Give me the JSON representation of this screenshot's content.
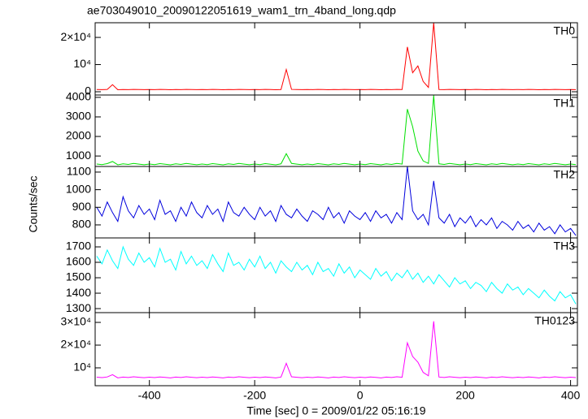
{
  "chart_data": [
    {
      "type": "line",
      "title": "ae703049010_20090122051619_wam1_trn_4band_long.qdp",
      "label": "TH0",
      "color": "#ff0000",
      "xlim": [
        -503,
        413
      ],
      "ylim": [
        -1200,
        25400
      ],
      "yticks": [
        0,
        {
          "value": 10000,
          "label": "10⁴"
        },
        {
          "value": 20000,
          "label": "2×10⁴"
        }
      ],
      "x": [
        -500,
        -490,
        -480,
        -470,
        -460,
        -450,
        -440,
        -430,
        -420,
        -410,
        -400,
        -390,
        -380,
        -370,
        -360,
        -350,
        -340,
        -330,
        -320,
        -310,
        -300,
        -290,
        -280,
        -270,
        -260,
        -250,
        -240,
        -230,
        -220,
        -210,
        -200,
        -190,
        -180,
        -170,
        -160,
        -150,
        -140,
        -130,
        -120,
        -110,
        -100,
        -90,
        -80,
        -70,
        -60,
        -50,
        -40,
        -30,
        -20,
        -10,
        0,
        10,
        20,
        30,
        40,
        50,
        60,
        70,
        80,
        90,
        100,
        110,
        120,
        130,
        140,
        150,
        160,
        170,
        180,
        190,
        200,
        210,
        220,
        230,
        240,
        250,
        260,
        270,
        280,
        290,
        300,
        310,
        320,
        330,
        340,
        350,
        360,
        370,
        380,
        390,
        400,
        410
      ],
      "values": [
        820,
        780,
        850,
        2600,
        760,
        830,
        790,
        870,
        810,
        770,
        820,
        780,
        850,
        800,
        760,
        830,
        790,
        870,
        810,
        770,
        820,
        780,
        850,
        800,
        760,
        830,
        790,
        870,
        810,
        770,
        820,
        780,
        850,
        800,
        760,
        830,
        8200,
        870,
        810,
        770,
        820,
        780,
        850,
        800,
        760,
        830,
        790,
        870,
        810,
        770,
        820,
        780,
        850,
        800,
        760,
        830,
        790,
        870,
        810,
        16500,
        7000,
        9500,
        3800,
        1600,
        25400,
        830,
        790,
        870,
        810,
        770,
        820,
        780,
        850,
        800,
        760,
        830,
        790,
        870,
        810,
        770,
        820,
        780,
        850,
        800,
        760,
        830,
        790,
        870,
        810,
        770,
        820,
        780
      ]
    },
    {
      "type": "line",
      "label": "TH1",
      "color": "#00e000",
      "xlim": [
        -503,
        413
      ],
      "ylim": [
        465,
        4120
      ],
      "yticks": [
        1000,
        2000,
        3000,
        4000
      ],
      "x": [
        -500,
        -490,
        -480,
        -470,
        -460,
        -450,
        -440,
        -430,
        -420,
        -410,
        -400,
        -390,
        -380,
        -370,
        -360,
        -350,
        -340,
        -330,
        -320,
        -310,
        -300,
        -290,
        -280,
        -270,
        -260,
        -250,
        -240,
        -230,
        -220,
        -210,
        -200,
        -190,
        -180,
        -170,
        -160,
        -150,
        -140,
        -130,
        -120,
        -110,
        -100,
        -90,
        -80,
        -70,
        -60,
        -50,
        -40,
        -30,
        -20,
        -10,
        0,
        10,
        20,
        30,
        40,
        50,
        60,
        70,
        80,
        90,
        100,
        110,
        120,
        130,
        140,
        150,
        160,
        170,
        180,
        190,
        200,
        210,
        220,
        230,
        240,
        250,
        260,
        270,
        280,
        290,
        300,
        310,
        320,
        330,
        340,
        350,
        360,
        370,
        380,
        390,
        400,
        410
      ],
      "values": [
        590,
        560,
        610,
        720,
        550,
        600,
        570,
        620,
        585,
        555,
        590,
        560,
        610,
        580,
        550,
        600,
        570,
        620,
        585,
        555,
        590,
        560,
        610,
        580,
        550,
        600,
        570,
        620,
        585,
        555,
        590,
        560,
        610,
        580,
        550,
        600,
        1120,
        620,
        585,
        555,
        590,
        560,
        610,
        580,
        550,
        600,
        570,
        620,
        585,
        555,
        590,
        560,
        610,
        580,
        550,
        600,
        570,
        620,
        585,
        3400,
        2500,
        1250,
        750,
        620,
        4100,
        600,
        570,
        620,
        585,
        555,
        590,
        560,
        610,
        580,
        550,
        600,
        570,
        620,
        585,
        555,
        590,
        560,
        610,
        580,
        550,
        600,
        570,
        620,
        585,
        555,
        590,
        560
      ]
    },
    {
      "type": "line",
      "label": "TH2",
      "ylabel": "Counts/sec",
      "color": "#0000dd",
      "xlim": [
        -503,
        413
      ],
      "ylim": [
        726,
        1132
      ],
      "yticks": [
        800,
        900,
        1000,
        1100
      ],
      "x": [
        -500,
        -490,
        -480,
        -470,
        -460,
        -450,
        -440,
        -430,
        -420,
        -410,
        -400,
        -390,
        -380,
        -370,
        -360,
        -350,
        -340,
        -330,
        -320,
        -310,
        -300,
        -290,
        -280,
        -270,
        -260,
        -250,
        -240,
        -230,
        -220,
        -210,
        -200,
        -190,
        -180,
        -170,
        -160,
        -150,
        -140,
        -130,
        -120,
        -110,
        -100,
        -90,
        -80,
        -70,
        -60,
        -50,
        -40,
        -30,
        -20,
        -10,
        0,
        10,
        20,
        30,
        40,
        50,
        60,
        70,
        80,
        90,
        100,
        110,
        120,
        130,
        140,
        150,
        160,
        170,
        180,
        190,
        200,
        210,
        220,
        230,
        240,
        250,
        260,
        270,
        280,
        290,
        300,
        310,
        320,
        330,
        340,
        350,
        360,
        370,
        380,
        390,
        400,
        410
      ],
      "values": [
        900,
        850,
        930,
        870,
        820,
        960,
        880,
        840,
        910,
        860,
        890,
        830,
        940,
        860,
        880,
        820,
        900,
        850,
        930,
        870,
        840,
        910,
        860,
        890,
        820,
        930,
        870,
        850,
        900,
        860,
        830,
        900,
        850,
        880,
        820,
        910,
        860,
        840,
        890,
        850,
        820,
        880,
        860,
        830,
        900,
        840,
        870,
        810,
        880,
        850,
        830,
        870,
        820,
        880,
        840,
        860,
        810,
        870,
        830,
        1132,
        880,
        830,
        860,
        800,
        1050,
        840,
        810,
        860,
        790,
        840,
        810,
        850,
        790,
        830,
        800,
        840,
        780,
        820,
        800,
        770,
        820,
        780,
        800,
        760,
        810,
        770,
        790,
        750,
        800,
        760,
        780,
        740
      ]
    },
    {
      "type": "line",
      "label": "TH3",
      "color": "#00ffff",
      "xlim": [
        -503,
        413
      ],
      "ylim": [
        1274,
        1758
      ],
      "yticks": [
        1300,
        1400,
        1500,
        1600,
        1700
      ],
      "x": [
        -500,
        -490,
        -480,
        -470,
        -460,
        -450,
        -440,
        -430,
        -420,
        -410,
        -400,
        -390,
        -380,
        -370,
        -360,
        -350,
        -340,
        -330,
        -320,
        -310,
        -300,
        -290,
        -280,
        -270,
        -260,
        -250,
        -240,
        -230,
        -220,
        -210,
        -200,
        -190,
        -180,
        -170,
        -160,
        -150,
        -140,
        -130,
        -120,
        -110,
        -100,
        -90,
        -80,
        -70,
        -60,
        -50,
        -40,
        -30,
        -20,
        -10,
        0,
        10,
        20,
        30,
        40,
        50,
        60,
        70,
        80,
        90,
        100,
        110,
        120,
        130,
        140,
        150,
        160,
        170,
        180,
        190,
        200,
        210,
        220,
        230,
        240,
        250,
        260,
        270,
        280,
        290,
        300,
        310,
        320,
        330,
        340,
        350,
        360,
        370,
        380,
        390,
        400,
        410
      ],
      "values": [
        1640,
        1590,
        1680,
        1610,
        1560,
        1700,
        1620,
        1580,
        1660,
        1600,
        1630,
        1570,
        1690,
        1600,
        1620,
        1550,
        1670,
        1590,
        1640,
        1580,
        1610,
        1560,
        1650,
        1590,
        1540,
        1660,
        1580,
        1600,
        1550,
        1620,
        1570,
        1640,
        1560,
        1600,
        1530,
        1610,
        1570,
        1540,
        1600,
        1550,
        1580,
        1520,
        1600,
        1540,
        1560,
        1510,
        1590,
        1530,
        1570,
        1500,
        1550,
        1520,
        1490,
        1560,
        1510,
        1540,
        1480,
        1530,
        1500,
        1550,
        1490,
        1530,
        1470,
        1510,
        1460,
        1520,
        1480,
        1440,
        1500,
        1460,
        1480,
        1430,
        1470,
        1450,
        1410,
        1470,
        1430,
        1400,
        1460,
        1420,
        1440,
        1390,
        1430,
        1400,
        1370,
        1420,
        1380,
        1350,
        1410,
        1370,
        1390,
        1330
      ]
    },
    {
      "type": "line",
      "label": "TH0123",
      "xlabel": "Time [sec] 0 = 2009/01/22 05:16:19",
      "color": "#ff00ff",
      "xlim": [
        -503,
        413
      ],
      "ylim": [
        2140,
        34300
      ],
      "yticks": [
        {
          "value": 10000,
          "label": "10⁴"
        },
        {
          "value": 20000,
          "label": "2×10⁴"
        },
        {
          "value": 30000,
          "label": "3×10⁴"
        }
      ],
      "xticks": [
        -400,
        -200,
        0,
        200,
        400
      ],
      "x": [
        -500,
        -490,
        -480,
        -470,
        -460,
        -450,
        -440,
        -430,
        -420,
        -410,
        -400,
        -390,
        -380,
        -370,
        -360,
        -350,
        -340,
        -330,
        -320,
        -310,
        -300,
        -290,
        -280,
        -270,
        -260,
        -250,
        -240,
        -230,
        -220,
        -210,
        -200,
        -190,
        -180,
        -170,
        -160,
        -150,
        -140,
        -130,
        -120,
        -110,
        -100,
        -90,
        -80,
        -70,
        -60,
        -50,
        -40,
        -30,
        -20,
        -10,
        0,
        10,
        20,
        30,
        40,
        50,
        60,
        70,
        80,
        90,
        100,
        110,
        120,
        130,
        140,
        150,
        160,
        170,
        180,
        190,
        200,
        210,
        220,
        230,
        240,
        250,
        260,
        270,
        280,
        290,
        300,
        310,
        320,
        330,
        340,
        350,
        360,
        370,
        380,
        390,
        400,
        410
      ],
      "values": [
        5900,
        5700,
        6000,
        7000,
        5600,
        5950,
        5750,
        6050,
        5850,
        5650,
        5900,
        5700,
        6000,
        5800,
        5600,
        5950,
        5750,
        6050,
        5850,
        5650,
        5900,
        5700,
        6000,
        5800,
        5600,
        5950,
        5750,
        6050,
        5850,
        5650,
        5900,
        5700,
        6000,
        5800,
        5600,
        5950,
        12000,
        6050,
        5850,
        5650,
        5900,
        5700,
        6000,
        5800,
        5600,
        5950,
        5750,
        6050,
        5850,
        5650,
        5900,
        5700,
        6000,
        5800,
        5600,
        5950,
        5750,
        6050,
        5850,
        21000,
        15000,
        12500,
        8000,
        6500,
        30500,
        5950,
        5750,
        6050,
        5850,
        5650,
        5900,
        5700,
        6000,
        5800,
        5600,
        5950,
        5750,
        6050,
        5850,
        5650,
        5900,
        5700,
        6000,
        5800,
        5600,
        5950,
        5750,
        6050,
        5850,
        5650,
        5900,
        5700
      ]
    }
  ]
}
